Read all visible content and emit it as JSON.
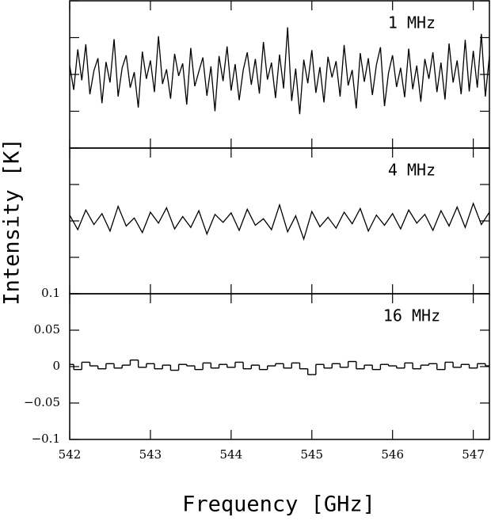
{
  "chart_data": [
    {
      "type": "line",
      "annotation": "1 MHz",
      "color": "#000000",
      "xlim": [
        542,
        547.2
      ],
      "ylim": [
        -0.1,
        0.1
      ],
      "x": [
        542,
        542.05,
        542.1,
        542.15,
        542.2,
        542.25,
        542.3,
        542.35,
        542.4,
        542.45,
        542.5,
        542.55,
        542.6,
        542.65,
        542.7,
        542.75,
        542.8,
        542.85,
        542.9,
        542.95,
        543,
        543.05,
        543.1,
        543.15,
        543.2,
        543.25,
        543.3,
        543.35,
        543.4,
        543.45,
        543.5,
        543.55,
        543.6,
        543.65,
        543.7,
        543.75,
        543.8,
        543.85,
        543.9,
        543.95,
        544,
        544.05,
        544.1,
        544.15,
        544.2,
        544.25,
        544.3,
        544.35,
        544.4,
        544.45,
        544.5,
        544.55,
        544.6,
        544.65,
        544.7,
        544.75,
        544.8,
        544.85,
        544.9,
        544.95,
        545,
        545.05,
        545.1,
        545.15,
        545.2,
        545.25,
        545.3,
        545.35,
        545.4,
        545.45,
        545.5,
        545.55,
        545.6,
        545.65,
        545.7,
        545.75,
        545.8,
        545.85,
        545.9,
        545.95,
        546,
        546.05,
        546.1,
        546.15,
        546.2,
        546.25,
        546.3,
        546.35,
        546.4,
        546.45,
        546.5,
        546.55,
        546.6,
        546.65,
        546.7,
        546.75,
        546.8,
        546.85,
        546.9,
        546.95,
        547,
        547.05,
        547.1,
        547.15,
        547.2
      ],
      "values": [
        0.012,
        -0.021,
        0.034,
        -0.008,
        0.041,
        -0.027,
        0.005,
        0.022,
        -0.039,
        0.017,
        -0.011,
        0.048,
        -0.03,
        0.009,
        0.026,
        -0.018,
        0.003,
        -0.045,
        0.031,
        -0.006,
        0.019,
        -0.024,
        0.052,
        -0.013,
        0.007,
        -0.033,
        0.028,
        -0.002,
        0.015,
        -0.041,
        0.036,
        -0.016,
        0.004,
        0.023,
        -0.029,
        0.011,
        -0.05,
        0.025,
        -0.009,
        0.038,
        -0.022,
        0.014,
        -0.035,
        0.006,
        0.03,
        -0.014,
        0.021,
        -0.026,
        0.044,
        -0.007,
        0.016,
        -0.032,
        0.027,
        -0.019,
        0.064,
        -0.036,
        0.008,
        -0.054,
        0.02,
        -0.012,
        0.033,
        -0.025,
        0.01,
        -0.038,
        0.024,
        -0.004,
        0.018,
        -0.03,
        0.04,
        -0.015,
        0.006,
        -0.046,
        0.029,
        -0.01,
        0.022,
        -0.028,
        0.013,
        0.037,
        -0.043,
        0.002,
        0.026,
        -0.017,
        0.009,
        -0.031,
        0.035,
        -0.02,
        0.012,
        -0.037,
        0.021,
        -0.006,
        0.03,
        -0.024,
        0.016,
        -0.034,
        0.042,
        -0.011,
        0.019,
        -0.027,
        0.047,
        -0.023,
        0.032,
        -0.018,
        0.055,
        -0.03,
        0.025
      ]
    },
    {
      "type": "line",
      "annotation": "4 MHz",
      "color": "#000000",
      "xlim": [
        542,
        547.2
      ],
      "ylim": [
        -0.1,
        0.1
      ],
      "x": [
        542,
        542.1,
        542.2,
        542.3,
        542.4,
        542.5,
        542.6,
        542.7,
        542.8,
        542.9,
        543,
        543.1,
        543.2,
        543.3,
        543.4,
        543.5,
        543.6,
        543.7,
        543.8,
        543.9,
        544,
        544.1,
        544.2,
        544.3,
        544.4,
        544.5,
        544.6,
        544.7,
        544.8,
        544.9,
        545,
        545.1,
        545.2,
        545.3,
        545.4,
        545.5,
        545.6,
        545.7,
        545.8,
        545.9,
        546,
        546.1,
        546.2,
        546.3,
        546.4,
        546.5,
        546.6,
        546.7,
        546.8,
        546.9,
        547,
        547.1,
        547.2
      ],
      "values": [
        0.008,
        -0.012,
        0.015,
        -0.005,
        0.01,
        -0.014,
        0.02,
        -0.007,
        0.004,
        -0.016,
        0.012,
        -0.003,
        0.018,
        -0.011,
        0.006,
        -0.009,
        0.014,
        -0.018,
        0.009,
        -0.002,
        0.011,
        -0.013,
        0.016,
        -0.006,
        0.003,
        -0.012,
        0.022,
        -0.015,
        0.007,
        -0.025,
        0.013,
        -0.008,
        0.005,
        -0.01,
        0.012,
        -0.004,
        0.017,
        -0.014,
        0.008,
        -0.006,
        0.01,
        -0.011,
        0.015,
        -0.003,
        0.009,
        -0.013,
        0.014,
        -0.007,
        0.019,
        -0.009,
        0.024,
        -0.005,
        0.012
      ]
    },
    {
      "type": "step",
      "annotation": "16 MHz",
      "color": "#000000",
      "xlim": [
        542,
        547.2
      ],
      "ylim": [
        -0.1,
        0.1
      ],
      "xlabel": "Frequency [GHz]",
      "ylabel": "Intensity [K]",
      "xticks": [
        542,
        543,
        544,
        545,
        546,
        547
      ],
      "yticks": [
        -0.1,
        -0.05,
        0,
        0.05,
        0.1
      ],
      "ytick_labels_printed": [
        {
          "value": -0.1,
          "label": "−0.1"
        },
        {
          "value": -0.05,
          "label": "−0.05"
        },
        0,
        0.05,
        0.1
      ],
      "x": [
        542,
        542.1,
        542.2,
        542.3,
        542.4,
        542.5,
        542.6,
        542.7,
        542.8,
        542.9,
        543,
        543.1,
        543.2,
        543.3,
        543.4,
        543.5,
        543.6,
        543.7,
        543.8,
        543.9,
        544,
        544.1,
        544.2,
        544.3,
        544.4,
        544.5,
        544.6,
        544.7,
        544.8,
        544.9,
        545,
        545.1,
        545.2,
        545.3,
        545.4,
        545.5,
        545.6,
        545.7,
        545.8,
        545.9,
        546,
        546.1,
        546.2,
        546.3,
        546.4,
        546.5,
        546.6,
        546.7,
        546.8,
        546.9,
        547,
        547.1,
        547.2
      ],
      "values": [
        0.003,
        -0.004,
        0.006,
        0.001,
        -0.003,
        0.004,
        -0.002,
        0.002,
        0.009,
        -0.001,
        0.004,
        -0.003,
        0.002,
        -0.005,
        0.003,
        0.001,
        -0.004,
        0.005,
        -0.002,
        0.003,
        -0.001,
        0.006,
        -0.003,
        0.002,
        -0.004,
        0.001,
        0.004,
        -0.002,
        0.005,
        -0.003,
        -0.011,
        0.003,
        -0.002,
        0.004,
        -0.001,
        0.007,
        -0.003,
        0.002,
        -0.004,
        0.003,
        0.001,
        -0.002,
        0.005,
        -0.003,
        0.002,
        0.004,
        -0.004,
        0.006,
        -0.001,
        0.003,
        -0.002,
        0.004,
        0.001
      ]
    }
  ]
}
